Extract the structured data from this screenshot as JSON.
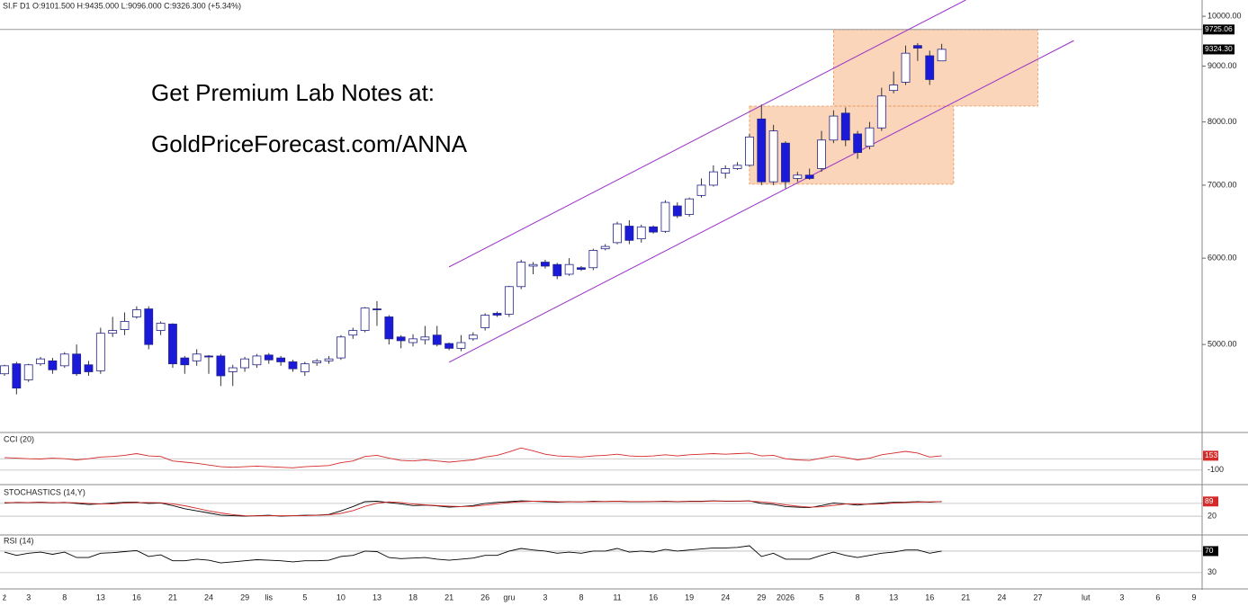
{
  "chart_data": {
    "type": "candlestick",
    "header": "SI.F  D1  O:9101.500  H:9435.000  L:9096.000  C:9326.300  (+5.34%)",
    "annotations": [
      "Get Premium Lab Notes at:",
      "GoldPriceForecast.com/ANNA"
    ],
    "log_scale": true,
    "grid": false,
    "up_color": "#ffffff",
    "down_color": "#1a1ad8",
    "outline_color": "#23238a",
    "categories": [
      "ź",
      null,
      "3",
      null,
      null,
      "8",
      null,
      null,
      "13",
      null,
      null,
      "16",
      null,
      null,
      "21",
      null,
      null,
      "24",
      null,
      null,
      "29",
      null,
      "lis",
      null,
      null,
      "5",
      null,
      null,
      "10",
      null,
      null,
      "13",
      null,
      null,
      "18",
      null,
      null,
      "21",
      null,
      null,
      "26",
      null,
      "gru",
      null,
      null,
      "3",
      null,
      null,
      "8",
      null,
      null,
      "11",
      null,
      null,
      "16",
      null,
      null,
      "19",
      null,
      null,
      "24",
      null,
      null,
      "29",
      null,
      "2026",
      null,
      null,
      "5",
      null,
      null,
      "8",
      null,
      null,
      "13",
      null,
      null,
      "16",
      null,
      null,
      "21",
      null,
      null,
      "24",
      null,
      null,
      "27",
      null,
      null,
      null,
      "lut",
      null,
      null,
      "3",
      null,
      null,
      "6",
      null,
      null,
      "9"
    ],
    "open": [
      4700,
      4800,
      4640,
      4800,
      4830,
      4780,
      4900,
      4790,
      4730,
      5120,
      5160,
      5300,
      5390,
      5150,
      5220,
      4860,
      4830,
      4880,
      4880,
      4720,
      4760,
      4790,
      4890,
      4860,
      4820,
      4720,
      4810,
      4830,
      4860,
      5100,
      5150,
      5390,
      5300,
      5080,
      5020,
      5050,
      5100,
      5010,
      4960,
      5060,
      5180,
      5340,
      5330,
      5650,
      5900,
      5950,
      5920,
      5800,
      5880,
      5880,
      6120,
      6200,
      6420,
      6250,
      6410,
      6350,
      6700,
      6580,
      6850,
      7000,
      7180,
      7250,
      7300,
      8050,
      7050,
      7650,
      7100,
      7150,
      7250,
      7700,
      8150,
      7800,
      7600,
      7900,
      8550,
      8700,
      9400,
      9200,
      9101.5,
      null,
      null,
      null,
      null,
      null,
      null,
      null,
      null,
      null,
      null,
      null,
      null,
      null,
      null,
      null,
      null,
      null,
      null,
      null,
      null,
      null
    ],
    "high": [
      4790,
      4820,
      4800,
      4870,
      4860,
      4920,
      5000,
      4830,
      5180,
      5300,
      5350,
      5420,
      5420,
      5250,
      5230,
      4880,
      4950,
      4890,
      4900,
      4790,
      4870,
      4900,
      4910,
      4880,
      4840,
      4820,
      4850,
      4880,
      5100,
      5180,
      5410,
      5480,
      5320,
      5100,
      5110,
      5200,
      5200,
      5020,
      5100,
      5130,
      5340,
      5360,
      5660,
      5980,
      5950,
      5980,
      5940,
      6000,
      5900,
      6120,
      6180,
      6480,
      6500,
      6440,
      6430,
      6780,
      6750,
      6820,
      7100,
      7300,
      7300,
      7350,
      7800,
      8300,
      7950,
      7680,
      7200,
      7250,
      7850,
      8200,
      8250,
      7850,
      8000,
      8600,
      8900,
      9400,
      9450,
      9300,
      9435,
      null,
      null,
      null,
      null,
      null,
      null,
      null,
      null,
      null,
      null,
      null,
      null,
      null,
      null,
      null,
      null,
      null,
      null,
      null,
      null,
      null
    ],
    "low": [
      4680,
      4500,
      4620,
      4780,
      4700,
      4760,
      4680,
      4680,
      4700,
      5080,
      5100,
      5280,
      4950,
      5100,
      4760,
      4700,
      4780,
      4700,
      4580,
      4580,
      4720,
      4760,
      4800,
      4780,
      4720,
      4680,
      4780,
      4800,
      4840,
      5060,
      5130,
      5200,
      5000,
      4960,
      4980,
      5000,
      4980,
      4940,
      4930,
      5040,
      5150,
      5300,
      5300,
      5620,
      5800,
      5870,
      5740,
      5780,
      5840,
      5850,
      6100,
      6180,
      6180,
      6200,
      6320,
      6330,
      6530,
      6550,
      6820,
      6980,
      7100,
      7230,
      7280,
      7000,
      7000,
      6950,
      7050,
      7080,
      7200,
      7650,
      7600,
      7400,
      7550,
      7850,
      8500,
      8650,
      9100,
      8650,
      9096,
      null,
      null,
      null,
      null,
      null,
      null,
      null,
      null,
      null,
      null,
      null,
      null,
      null,
      null,
      null,
      null,
      null,
      null,
      null,
      null,
      null
    ],
    "close": [
      4780,
      4560,
      4790,
      4850,
      4740,
      4900,
      4700,
      4720,
      5120,
      5150,
      5250,
      5380,
      5000,
      5230,
      4800,
      4790,
      4900,
      4870,
      4680,
      4760,
      4850,
      4880,
      4840,
      4820,
      4750,
      4800,
      4830,
      4850,
      5080,
      5150,
      5400,
      5380,
      5060,
      5040,
      5060,
      5080,
      5000,
      4960,
      5020,
      5100,
      5320,
      5320,
      5650,
      5950,
      5920,
      5900,
      5780,
      5920,
      5860,
      6100,
      6150,
      6450,
      6230,
      6410,
      6340,
      6750,
      6560,
      6800,
      7000,
      7200,
      7250,
      7300,
      7750,
      7050,
      7850,
      7050,
      7150,
      7100,
      7700,
      8100,
      7700,
      7500,
      7900,
      8450,
      8650,
      9250,
      9350,
      8750,
      9326.3,
      null,
      null,
      null,
      null,
      null,
      null,
      null,
      null,
      null,
      null,
      null,
      null,
      null,
      null,
      null,
      null,
      null,
      null,
      null,
      null,
      null
    ],
    "ylim": [
      4160,
      10350
    ],
    "yticks": [
      {
        "value": 10000,
        "label": "10000.00"
      },
      {
        "value": 9000,
        "label": "9000.00"
      },
      {
        "value": 8000,
        "label": "8000.00"
      },
      {
        "value": 7000,
        "label": "7000.00"
      },
      {
        "value": 6000,
        "label": "6000.00"
      },
      {
        "value": 5000,
        "label": "5000.00"
      }
    ],
    "hline": {
      "value": 9725.06,
      "label": "9725.06",
      "color": "#999999"
    },
    "last_price": {
      "value": 9324.3,
      "label": "9324.30"
    },
    "zone_color": "#f7b98c",
    "zones": [
      {
        "x": [
          62,
          79
        ],
        "y": [
          7014,
          8272
        ]
      },
      {
        "x": [
          69,
          86
        ],
        "y": [
          8272,
          9719
        ]
      }
    ],
    "channel_color": "#9b30c8",
    "channel": [
      {
        "x": [
          37,
          80
        ],
        "y": [
          5890,
          10350
        ]
      },
      {
        "x": [
          37,
          89
        ],
        "y": [
          4816,
          9500
        ]
      }
    ],
    "panels": [
      {
        "type": "line",
        "title": "CCI (20)",
        "ylim": [
          -260,
          530
        ],
        "yticks": [
          -100
        ],
        "levels": [
          100
        ],
        "series": [
          {
            "color": "#d42a2a",
            "values": [
              120,
              110,
              100,
              95,
              110,
              100,
              80,
              100,
              130,
              140,
              160,
              190,
              150,
              140,
              60,
              40,
              20,
              -10,
              -40,
              -50,
              -40,
              -30,
              -40,
              -50,
              -60,
              -40,
              -30,
              -20,
              30,
              60,
              140,
              160,
              110,
              70,
              60,
              80,
              60,
              40,
              60,
              80,
              130,
              160,
              220,
              290,
              240,
              180,
              150,
              140,
              130,
              150,
              160,
              180,
              150,
              140,
              150,
              170,
              150,
              170,
              180,
              190,
              180,
              190,
              200,
              150,
              160,
              100,
              80,
              70,
              110,
              150,
              120,
              80,
              110,
              170,
              200,
              230,
              200,
              130,
              153,
              null,
              null,
              null,
              null,
              null,
              null,
              null,
              null,
              null,
              null,
              null,
              null,
              null,
              null,
              null,
              null,
              null,
              null,
              null,
              null,
              null
            ]
          }
        ]
      },
      {
        "type": "line",
        "title": "STOCHASTICS (14,Y)",
        "ylim": [
          -56,
          160
        ],
        "yticks": [
          20
        ],
        "levels": [
          80
        ],
        "series": [
          {
            "color": "#000000",
            "values": [
              82,
              85,
              84,
              86,
              83,
              85,
              80,
              75,
              78,
              82,
              85,
              86,
              80,
              82,
              70,
              55,
              45,
              35,
              25,
              22,
              20,
              22,
              24,
              20,
              22,
              24,
              25,
              28,
              45,
              65,
              88,
              90,
              84,
              78,
              70,
              72,
              68,
              62,
              65,
              70,
              80,
              85,
              88,
              92,
              90,
              88,
              86,
              88,
              87,
              90,
              89,
              90,
              88,
              88,
              89,
              90,
              88,
              90,
              90,
              92,
              90,
              90,
              92,
              80,
              75,
              65,
              62,
              60,
              70,
              82,
              78,
              72,
              78,
              82,
              85,
              86,
              88,
              86,
              89,
              null,
              null,
              null,
              null,
              null,
              null,
              null,
              null,
              null,
              null,
              null,
              null,
              null,
              null,
              null,
              null,
              null,
              null,
              null,
              null,
              null
            ]
          },
          {
            "color": "#d42a2a",
            "values": [
              84,
              84,
              84,
              85,
              84,
              84,
              83,
              80,
              78,
              78,
              82,
              84,
              84,
              83,
              78,
              69,
              57,
              45,
              35,
              27,
              22,
              21,
              22,
              22,
              22,
              22,
              24,
              26,
              33,
              46,
              66,
              81,
              87,
              84,
              77,
              73,
              70,
              67,
              65,
              66,
              72,
              78,
              84,
              88,
              90,
              90,
              88,
              87,
              87,
              88,
              89,
              90,
              89,
              89,
              89,
              89,
              89,
              89,
              89,
              91,
              91,
              91,
              91,
              87,
              82,
              73,
              67,
              62,
              64,
              71,
              77,
              77,
              76,
              77,
              82,
              84,
              86,
              87,
              89,
              null,
              null,
              null,
              null,
              null,
              null,
              null,
              null,
              null,
              null,
              null,
              null,
              null,
              null,
              null,
              null,
              null,
              null,
              null,
              null,
              null
            ]
          }
        ]
      },
      {
        "type": "line",
        "title": "RSI (14)",
        "ylim": [
          8,
          95
        ],
        "yticks": [
          30
        ],
        "levels": [
          70
        ],
        "series": [
          {
            "color": "#000000",
            "values": [
              68,
              62,
              66,
              68,
              64,
              68,
              58,
              58,
              66,
              67,
              69,
              71,
              60,
              63,
              52,
              52,
              55,
              53,
              48,
              50,
              52,
              54,
              53,
              52,
              50,
              52,
              52,
              53,
              60,
              62,
              70,
              69,
              58,
              56,
              57,
              58,
              55,
              53,
              55,
              57,
              62,
              62,
              70,
              75,
              72,
              70,
              66,
              68,
              66,
              70,
              70,
              75,
              68,
              70,
              68,
              73,
              70,
              72,
              74,
              76,
              76,
              77,
              80,
              60,
              66,
              55,
              55,
              55,
              62,
              68,
              62,
              58,
              62,
              66,
              68,
              72,
              72,
              66,
              70,
              null,
              null,
              null,
              null,
              null,
              null,
              null,
              null,
              null,
              null,
              null,
              null,
              null,
              null,
              null,
              null,
              null,
              null,
              null,
              null,
              null
            ]
          }
        ]
      }
    ]
  }
}
